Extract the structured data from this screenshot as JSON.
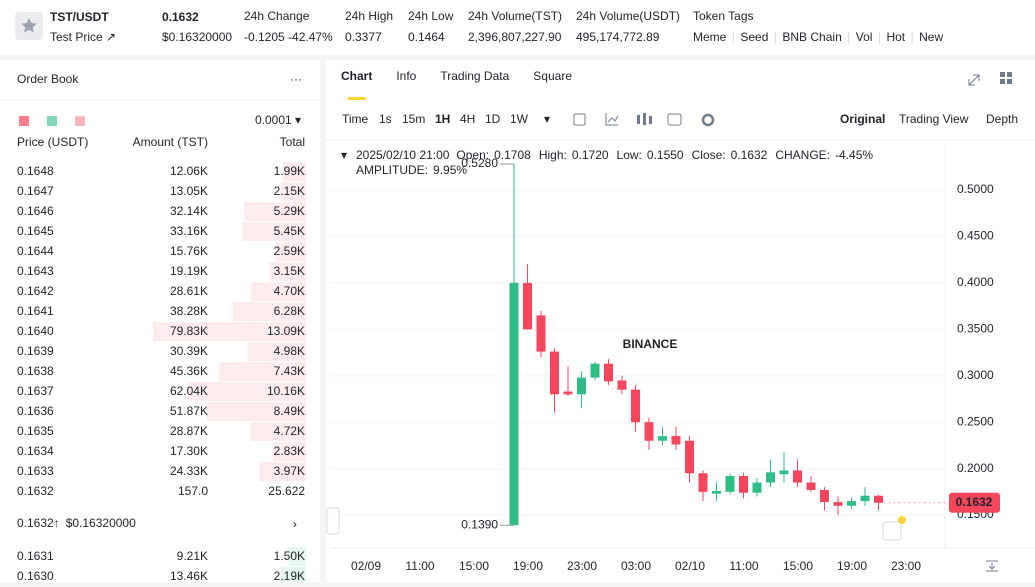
{
  "header": {
    "symbol": "TST/USDT",
    "sub": "Test Price ↗",
    "price": "0.1632",
    "price_usd": "$0.16320000",
    "stats": [
      {
        "label": "24h Change",
        "value": "-0.1205 -42.47%"
      },
      {
        "label": "24h High",
        "value": "0.3377"
      },
      {
        "label": "24h Low",
        "value": "0.1464"
      },
      {
        "label": "24h Volume(TST)",
        "value": "2,396,807,227.90"
      },
      {
        "label": "24h Volume(USDT)",
        "value": "495,174,772.89"
      }
    ],
    "tags_label": "Token Tags",
    "tags": [
      "Meme",
      "Seed",
      "BNB Chain",
      "Vol",
      "Hot",
      "New"
    ]
  },
  "order_book": {
    "title": "Order Book",
    "menu": "···",
    "precision": "0.0001 ▾",
    "columns": [
      "Price (USDT)",
      "Amount (TST)",
      "Total"
    ],
    "asks": [
      [
        "0.1648",
        "12.06K",
        "1.99K"
      ],
      [
        "0.1647",
        "13.05K",
        "2.15K"
      ],
      [
        "0.1646",
        "32.14K",
        "5.29K"
      ],
      [
        "0.1645",
        "33.16K",
        "5.45K"
      ],
      [
        "0.1644",
        "15.76K",
        "2.59K"
      ],
      [
        "0.1643",
        "19.19K",
        "3.15K"
      ],
      [
        "0.1642",
        "28.61K",
        "4.70K"
      ],
      [
        "0.1641",
        "38.28K",
        "6.28K"
      ],
      [
        "0.1640",
        "79.83K",
        "13.09K"
      ],
      [
        "0.1639",
        "30.39K",
        "4.98K"
      ],
      [
        "0.1638",
        "45.36K",
        "7.43K"
      ],
      [
        "0.1637",
        "62.04K",
        "10.16K"
      ],
      [
        "0.1636",
        "51.87K",
        "8.49K"
      ],
      [
        "0.1635",
        "28.87K",
        "4.72K"
      ],
      [
        "0.1634",
        "17.30K",
        "2.83K"
      ],
      [
        "0.1633",
        "24.33K",
        "3.97K"
      ],
      [
        "0.1632",
        "157.0",
        "25.622"
      ]
    ],
    "last_price": "0.1632↑",
    "last_price_usd": "$0.16320000",
    "more": "›",
    "bids": [
      [
        "0.1631",
        "9.21K",
        "1.50K"
      ],
      [
        "0.1630",
        "13.46K",
        "2.19K"
      ]
    ]
  },
  "chart_panel": {
    "tabs": [
      "Chart",
      "Info",
      "Trading Data",
      "Square"
    ],
    "intervals": [
      "Time",
      "1s",
      "15m",
      "1H",
      "4H",
      "1D",
      "1W",
      "▾"
    ],
    "views": [
      "Original",
      "Trading View",
      "Depth"
    ],
    "legend": {
      "date": "2025/02/10 21:00",
      "items": [
        {
          "label": "Open:",
          "value": "0.1708"
        },
        {
          "label": "High:",
          "value": "0.1720"
        },
        {
          "label": "Low:",
          "value": "0.1550"
        },
        {
          "label": "Close:",
          "value": "0.1632"
        },
        {
          "label": "CHANGE:",
          "value": "-4.45%"
        }
      ],
      "amplitude": {
        "label": "AMPLITUDE:",
        "value": "9.95%"
      }
    },
    "watermark": "BINANCE"
  },
  "chart_data": {
    "type": "candlestick",
    "up_color": "#2ebd85",
    "down_color": "#f6465d",
    "ylim": [
      0.1145,
      0.5485
    ],
    "yticks": [
      {
        "value": 0.5,
        "label": "0.5000"
      },
      {
        "value": 0.45,
        "label": "0.4500"
      },
      {
        "value": 0.4,
        "label": "0.4000"
      },
      {
        "value": 0.35,
        "label": "0.3500"
      },
      {
        "value": 0.3,
        "label": "0.3000"
      },
      {
        "value": 0.25,
        "label": "0.2500"
      },
      {
        "value": 0.2,
        "label": "0.2000"
      },
      {
        "value": 0.15,
        "label": "0.1500"
      }
    ],
    "grid": true,
    "xticks": [
      "02/09",
      "11:00",
      "15:00",
      "19:00",
      "23:00",
      "03:00",
      "02/10",
      "11:00",
      "15:00",
      "19:00",
      "23:00"
    ],
    "candles": [
      {
        "open": 0.139,
        "high": 0.528,
        "low": 0.139,
        "close": 0.4
      },
      {
        "open": 0.4,
        "high": 0.42,
        "low": 0.35,
        "close": 0.35
      },
      {
        "open": 0.365,
        "high": 0.37,
        "low": 0.32,
        "close": 0.326
      },
      {
        "open": 0.326,
        "high": 0.33,
        "low": 0.26,
        "close": 0.28
      },
      {
        "open": 0.283,
        "high": 0.31,
        "low": 0.278,
        "close": 0.28
      },
      {
        "open": 0.28,
        "high": 0.305,
        "low": 0.265,
        "close": 0.298
      },
      {
        "open": 0.298,
        "high": 0.315,
        "low": 0.295,
        "close": 0.313
      },
      {
        "open": 0.313,
        "high": 0.318,
        "low": 0.29,
        "close": 0.294
      },
      {
        "open": 0.295,
        "high": 0.3,
        "low": 0.28,
        "close": 0.285
      },
      {
        "open": 0.285,
        "high": 0.29,
        "low": 0.24,
        "close": 0.25
      },
      {
        "open": 0.25,
        "high": 0.255,
        "low": 0.22,
        "close": 0.23
      },
      {
        "open": 0.23,
        "high": 0.245,
        "low": 0.225,
        "close": 0.235
      },
      {
        "open": 0.235,
        "high": 0.245,
        "low": 0.22,
        "close": 0.226
      },
      {
        "open": 0.23,
        "high": 0.235,
        "low": 0.185,
        "close": 0.195
      },
      {
        "open": 0.195,
        "high": 0.198,
        "low": 0.165,
        "close": 0.175
      },
      {
        "open": 0.173,
        "high": 0.185,
        "low": 0.165,
        "close": 0.176
      },
      {
        "open": 0.175,
        "high": 0.195,
        "low": 0.172,
        "close": 0.192
      },
      {
        "open": 0.192,
        "high": 0.195,
        "low": 0.168,
        "close": 0.174
      },
      {
        "open": 0.174,
        "high": 0.19,
        "low": 0.17,
        "close": 0.185
      },
      {
        "open": 0.185,
        "high": 0.21,
        "low": 0.18,
        "close": 0.196
      },
      {
        "open": 0.194,
        "high": 0.218,
        "low": 0.185,
        "close": 0.198
      },
      {
        "open": 0.198,
        "high": 0.21,
        "low": 0.18,
        "close": 0.185
      },
      {
        "open": 0.185,
        "high": 0.192,
        "low": 0.175,
        "close": 0.177
      },
      {
        "open": 0.177,
        "high": 0.18,
        "low": 0.155,
        "close": 0.164
      },
      {
        "open": 0.164,
        "high": 0.17,
        "low": 0.15,
        "close": 0.16
      },
      {
        "open": 0.16,
        "high": 0.169,
        "low": 0.157,
        "close": 0.165
      },
      {
        "open": 0.165,
        "high": 0.18,
        "low": 0.16,
        "close": 0.1708
      },
      {
        "open": 0.1708,
        "high": 0.172,
        "low": 0.155,
        "close": 0.1632
      }
    ],
    "high_label": "0.5280",
    "low_label": "0.1390",
    "last_price_label": "0.1632"
  }
}
